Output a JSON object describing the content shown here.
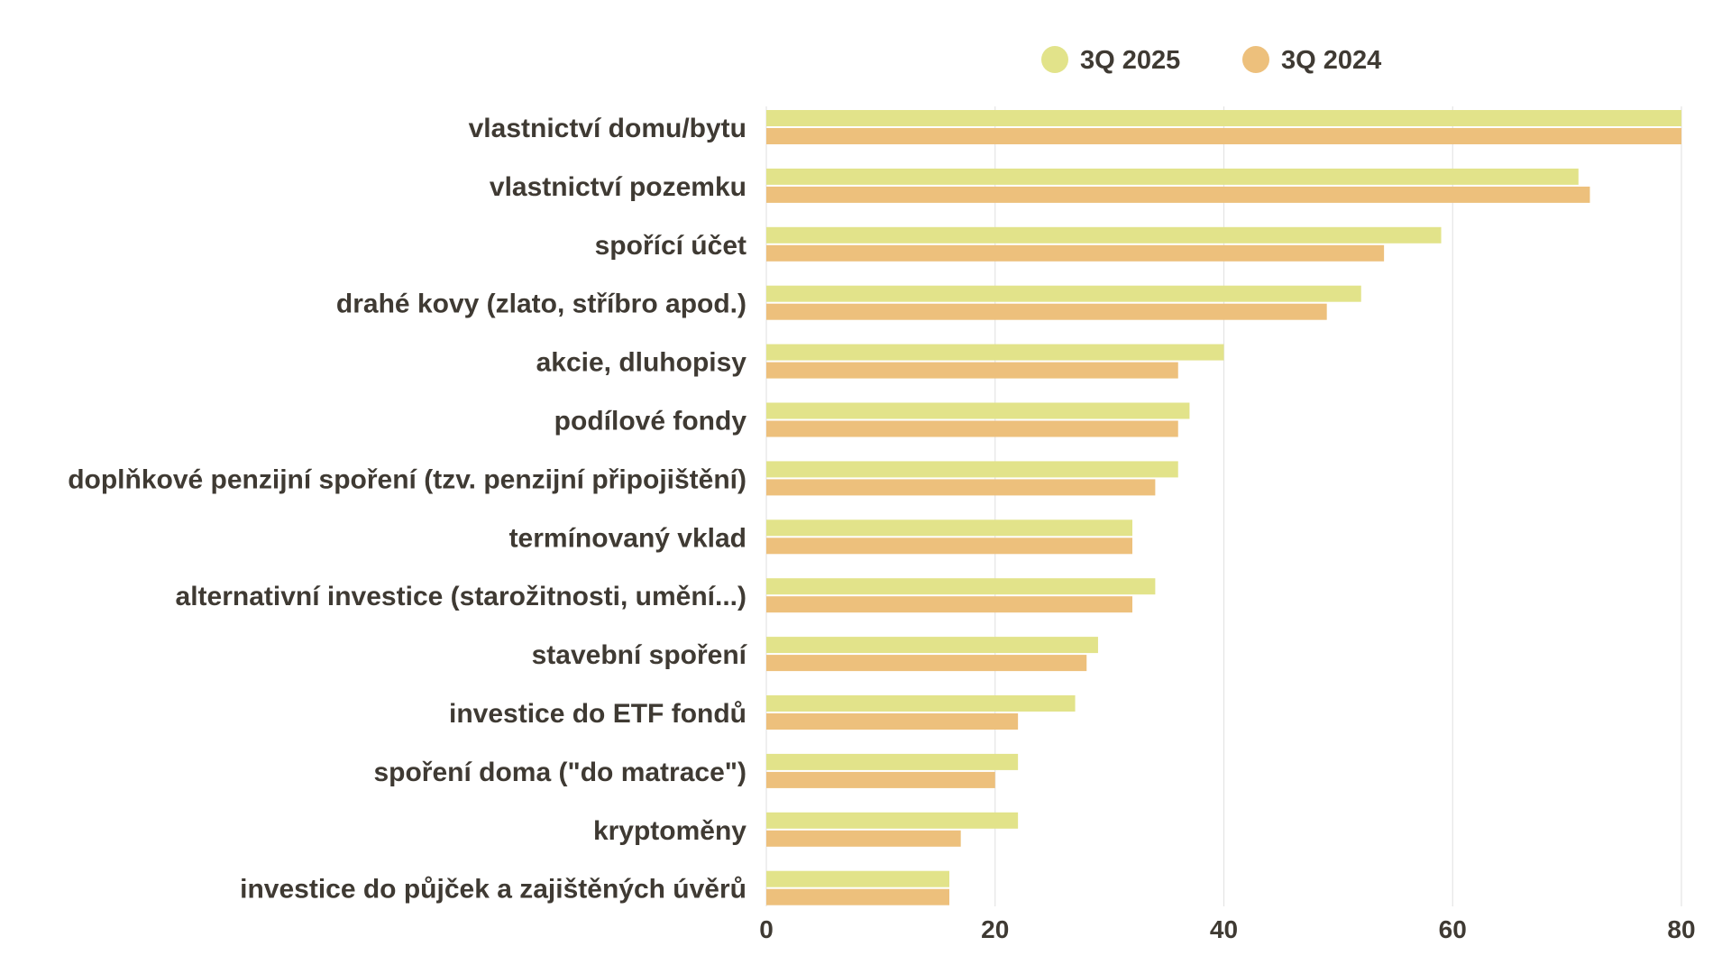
{
  "chart_data": {
    "type": "bar",
    "orientation": "horizontal",
    "categories": [
      "vlastnictví domu/bytu",
      "vlastnictví pozemku",
      "spořící účet",
      "drahé kovy (zlato, stříbro apod.)",
      "akcie, dluhopisy",
      "podílové fondy",
      "doplňkové penzijní spoření (tzv. penzijní připojištění)",
      "termínovaný vklad",
      "alternativní investice (starožitnosti, umění...)",
      "stavební spoření",
      "investice do ETF fondů",
      "spoření doma (\"do matrace\")",
      "kryptoměny",
      "investice do půjček a zajištěných úvěrů"
    ],
    "series": [
      {
        "name": "3Q 2025",
        "color": "#e2e38a",
        "values": [
          80,
          71,
          59,
          52,
          40,
          37,
          36,
          32,
          34,
          29,
          27,
          22,
          22,
          16
        ]
      },
      {
        "name": "3Q 2024",
        "color": "#edc07c",
        "values": [
          80,
          72,
          54,
          49,
          36,
          36,
          34,
          32,
          32,
          28,
          22,
          20,
          17,
          16
        ]
      }
    ],
    "xlim": [
      0,
      80
    ],
    "x_ticks": [
      "0",
      "20",
      "40",
      "60",
      "80"
    ],
    "grid": true,
    "legend_position": "top-center",
    "title": "",
    "xlabel": "",
    "ylabel": ""
  },
  "colors": {
    "text": "#3f3a33",
    "grid": "#e4e4e4"
  }
}
